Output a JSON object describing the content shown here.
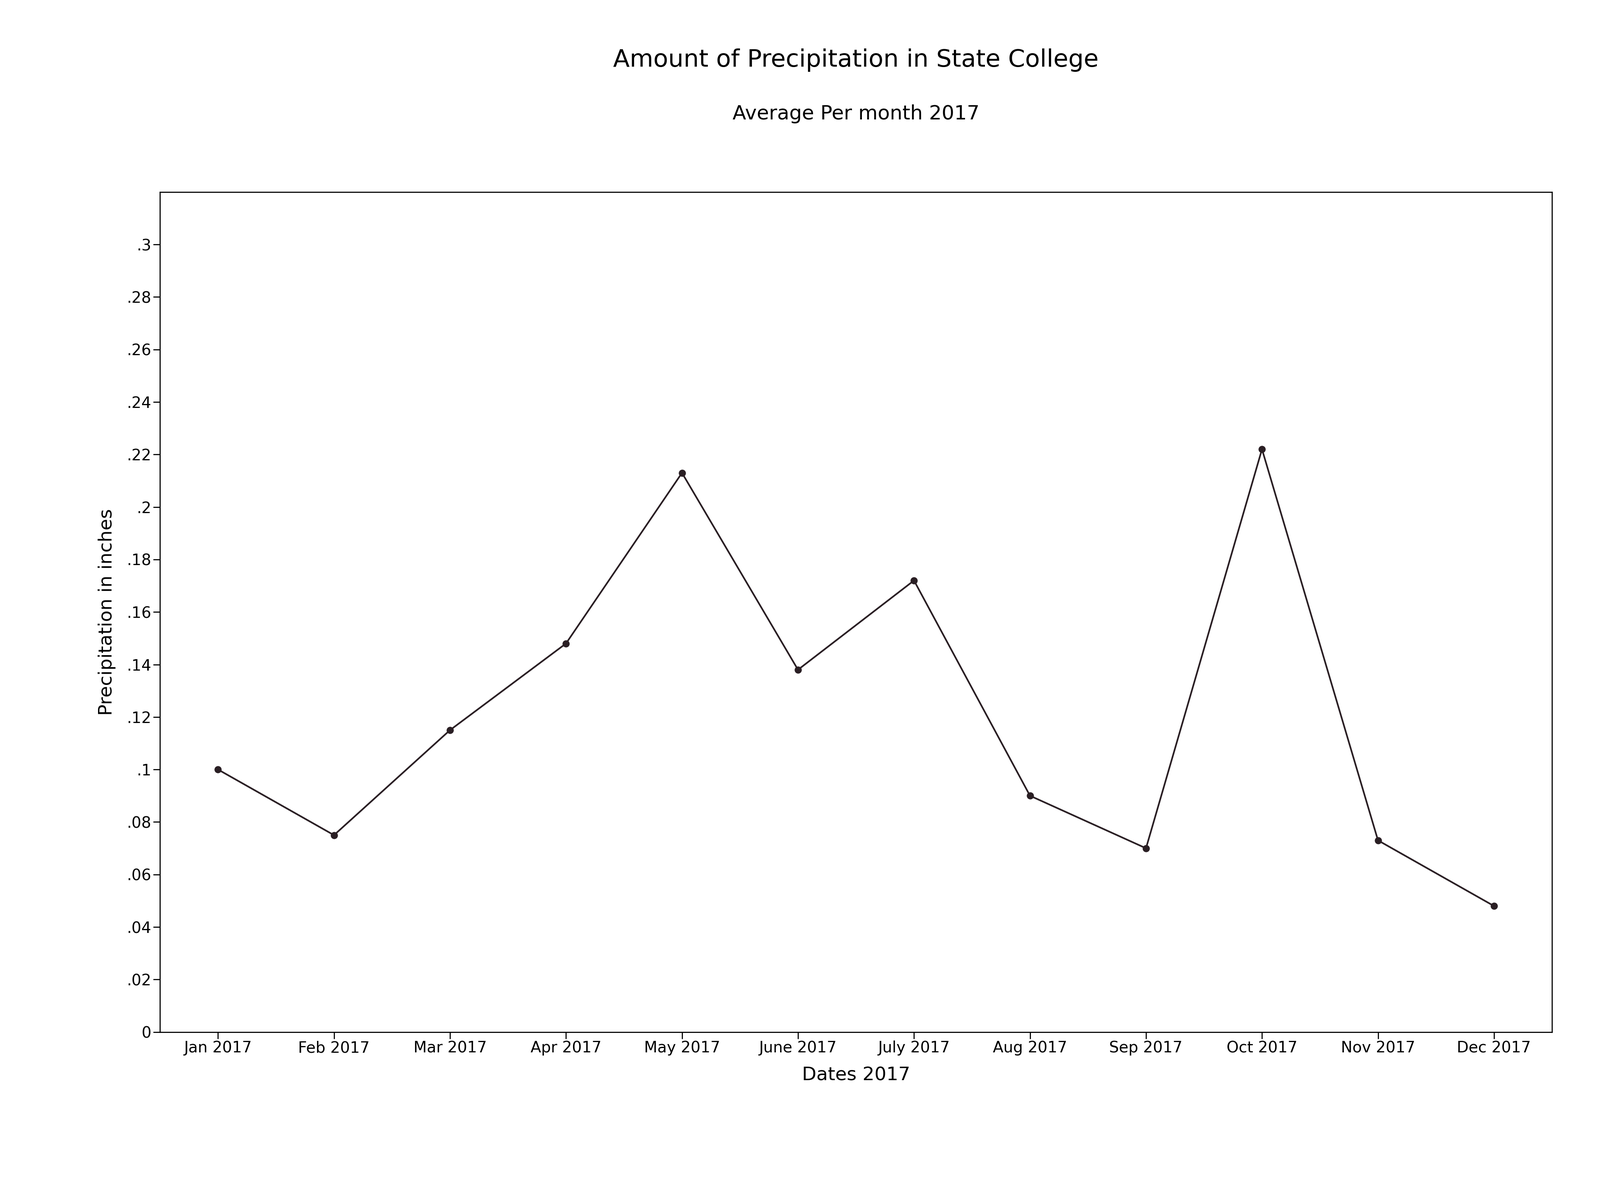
{
  "chart_data": {
    "type": "line",
    "title": "Amount of Precipitation in State College",
    "subtitle": "Average Per month 2017",
    "x_label": "Dates 2017",
    "y_label": "Precipitation in inches",
    "categories": [
      "Jan 2017",
      "Feb 2017",
      "Mar 2017",
      "Apr 2017",
      "May 2017",
      "June 2017",
      "July 2017",
      "Aug 2017",
      "Sep 2017",
      "Oct 2017",
      "Nov 2017",
      "Dec 2017"
    ],
    "values": [
      0.1,
      0.075,
      0.115,
      0.148,
      0.213,
      0.138,
      0.172,
      0.09,
      0.07,
      0.222,
      0.073,
      0.048
    ],
    "color": "#2a1f24",
    "marker": "o",
    "line_style": "solid",
    "ylim": [
      0,
      0.32
    ],
    "yticks": [
      0,
      {
        "value": 0.02,
        "label": ".02"
      },
      {
        "value": 0.04,
        "label": ".04"
      },
      {
        "value": 0.06,
        "label": ".06"
      },
      {
        "value": 0.08,
        "label": ".08"
      },
      {
        "value": 0.1,
        "label": ".1"
      },
      {
        "value": 0.12,
        "label": ".12"
      },
      {
        "value": 0.14,
        "label": ".14"
      },
      {
        "value": 0.16,
        "label": ".16"
      },
      {
        "value": 0.18,
        "label": ".18"
      },
      {
        "value": 0.2,
        "label": ".2"
      },
      {
        "value": 0.22,
        "label": ".22"
      },
      {
        "value": 0.24,
        "label": ".24"
      },
      {
        "value": 0.26,
        "label": ".26"
      },
      {
        "value": 0.28,
        "label": ".28"
      },
      {
        "value": 0.3,
        "label": ".3"
      }
    ],
    "grid": false
  }
}
